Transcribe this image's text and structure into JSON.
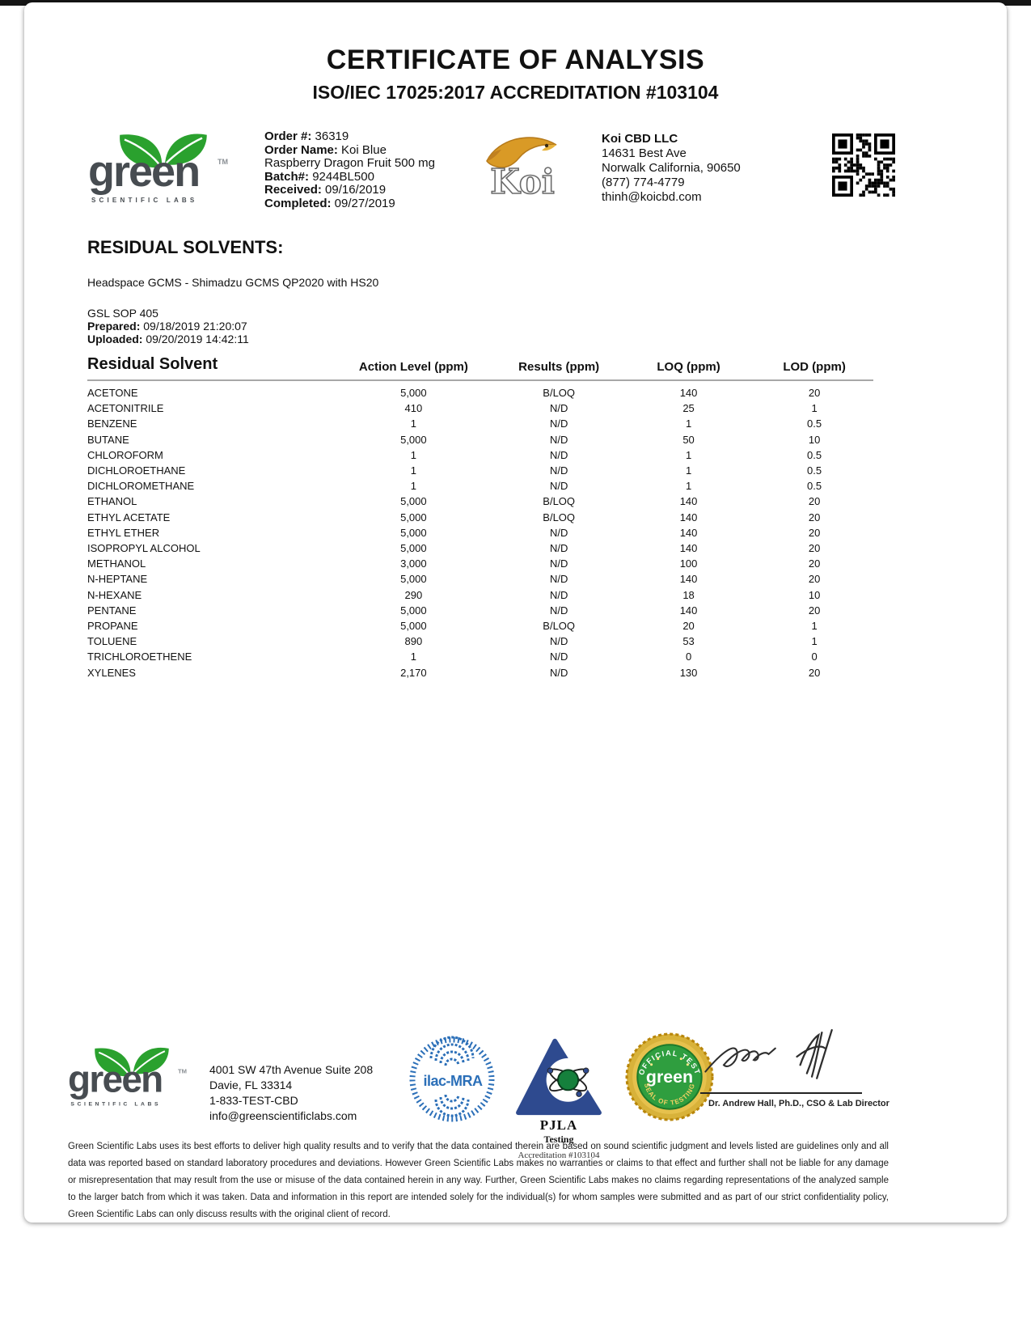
{
  "header": {
    "title": "CERTIFICATE OF ANALYSIS",
    "subtitle": "ISO/IEC 17025:2017 ACCREDITATION #103104"
  },
  "order": {
    "order_number_label": "Order #:",
    "order_number": "36319",
    "order_name_label": "Order Name:",
    "order_name": "Koi Blue",
    "order_name_line2": "Raspberry Dragon Fruit 500 mg",
    "batch_label": "Batch#:",
    "batch": "9244BL500",
    "received_label": "Received:",
    "received": "09/16/2019",
    "completed_label": "Completed:",
    "completed": "09/27/2019"
  },
  "client": {
    "name": "Koi CBD LLC",
    "address1": "14631 Best Ave",
    "address2": "Norwalk California, 90650",
    "phone": "(877) 774-4779",
    "email": "thinh@koicbd.com"
  },
  "section": {
    "heading": "RESIDUAL SOLVENTS:",
    "method": "Headspace GCMS - Shimadzu GCMS QP2020 with HS20",
    "sop": "GSL SOP 405",
    "prepared_label": "Prepared:",
    "prepared": "09/18/2019 21:20:07",
    "uploaded_label": "Uploaded:",
    "uploaded": "09/20/2019 14:42:11"
  },
  "table": {
    "headers": [
      "Residual Solvent",
      "Action Level (ppm)",
      "Results (ppm)",
      "LOQ (ppm)",
      "LOD (ppm)"
    ],
    "rows": [
      [
        "ACETONE",
        "5,000",
        "B/LOQ",
        "140",
        "20"
      ],
      [
        "ACETONITRILE",
        "410",
        "N/D",
        "25",
        "1"
      ],
      [
        "BENZENE",
        "1",
        "N/D",
        "1",
        "0.5"
      ],
      [
        "BUTANE",
        "5,000",
        "N/D",
        "50",
        "10"
      ],
      [
        "CHLOROFORM",
        "1",
        "N/D",
        "1",
        "0.5"
      ],
      [
        "DICHLOROETHANE",
        "1",
        "N/D",
        "1",
        "0.5"
      ],
      [
        "DICHLOROMETHANE",
        "1",
        "N/D",
        "1",
        "0.5"
      ],
      [
        "ETHANOL",
        "5,000",
        "B/LOQ",
        "140",
        "20"
      ],
      [
        "ETHYL ACETATE",
        "5,000",
        "B/LOQ",
        "140",
        "20"
      ],
      [
        "ETHYL ETHER",
        "5,000",
        "N/D",
        "140",
        "20"
      ],
      [
        "ISOPROPYL ALCOHOL",
        "5,000",
        "N/D",
        "140",
        "20"
      ],
      [
        "METHANOL",
        "3,000",
        "N/D",
        "100",
        "20"
      ],
      [
        "N-HEPTANE",
        "5,000",
        "N/D",
        "140",
        "20"
      ],
      [
        "N-HEXANE",
        "290",
        "N/D",
        "18",
        "10"
      ],
      [
        "PENTANE",
        "5,000",
        "N/D",
        "140",
        "20"
      ],
      [
        "PROPANE",
        "5,000",
        "B/LOQ",
        "20",
        "1"
      ],
      [
        "TOLUENE",
        "890",
        "N/D",
        "53",
        "1"
      ],
      [
        "TRICHLOROETHENE",
        "1",
        "N/D",
        "0",
        "0"
      ],
      [
        "XYLENES",
        "2,170",
        "N/D",
        "130",
        "20"
      ]
    ]
  },
  "branding": {
    "green_word": "green",
    "green_sub": "SCIENTIFIC LABS",
    "green_tm": "TM",
    "koi_word": "Koi",
    "colors": {
      "leaf_green": "#2aa12e",
      "logo_gray": "#474c51",
      "koi_gold": "#d99a26",
      "ilac_blue": "#2b6fb8",
      "pjla_navy": "#2e4a8f",
      "seal_gold": "#d8b23a",
      "seal_green": "#2f9e3f"
    }
  },
  "footer": {
    "lab_address1": "4001 SW 47th Avenue Suite 208",
    "lab_address2": "Davie, FL 33314",
    "lab_phone": "1-833-TEST-CBD",
    "lab_email": "info@greenscientificlabs.com",
    "ilac_label": "ilac-MRA",
    "pjla_name": "PJLA",
    "pjla_testing": "Testing",
    "pjla_accreditation": "Accreditation #103104",
    "seal_top": "OFFICIAL TEST",
    "seal_center": "green",
    "seal_bottom": "SEAL OF TESTING",
    "signer": "Dr. Andrew Hall, Ph.D., CSO & Lab Director",
    "disclaimer": "Green Scientific Labs uses its best efforts to deliver high quality results and to verify that the data contained therein are based on sound scientific judgment and levels listed are guidelines only and all data was reported based on standard laboratory procedures and deviations. However Green Scientific Labs makes no warranties or claims to that effect and further shall not be liable for any damage or misrepresentation that may result from the use or misuse of the data contained herein in any way. Further, Green Scientific Labs makes no claims regarding representations of the analyzed sample to the larger batch from which it was taken. Data and information in this report are intended solely for the individual(s) for whom samples were submitted and as part of our strict confidentiality policy, Green Scientific Labs can only discuss results with the original client of record."
  }
}
